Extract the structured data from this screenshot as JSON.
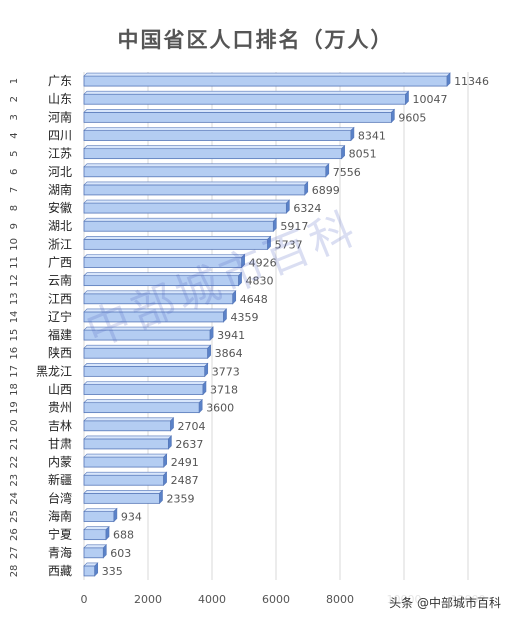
{
  "watermark": "中部城市百科",
  "source_badge": "头条 @中部城市百科",
  "colors": {
    "bar_fill": "#b4cdf2",
    "bar_top": "#d8e6fb",
    "bar_side": "#5a82c8",
    "bar_stroke": "#5677b8",
    "grid": "#d9d9d9"
  },
  "chart_data": {
    "type": "bar",
    "orientation": "horizontal",
    "title": "中国省区人口排名（万人）",
    "ranks": [
      "1",
      "2",
      "3",
      "4",
      "5",
      "6",
      "7",
      "8",
      "9",
      "10",
      "11",
      "12",
      "13",
      "14",
      "15",
      "16",
      "17",
      "18",
      "19",
      "20",
      "21",
      "22",
      "23",
      "24",
      "25",
      "26",
      "27",
      "28"
    ],
    "categories": [
      "广东",
      "山东",
      "河南",
      "四川",
      "江苏",
      "河北",
      "湖南",
      "安徽",
      "湖北",
      "浙江",
      "广西",
      "云南",
      "江西",
      "辽宁",
      "福建",
      "陕西",
      "黑龙江",
      "山西",
      "贵州",
      "吉林",
      "甘肃",
      "内蒙",
      "新疆",
      "台湾",
      "海南",
      "宁夏",
      "青海",
      "西藏"
    ],
    "values": [
      11346,
      10047,
      9605,
      8341,
      8051,
      7556,
      6899,
      6324,
      5917,
      5737,
      4926,
      4830,
      4648,
      4359,
      3941,
      3864,
      3773,
      3718,
      3600,
      2704,
      2637,
      2491,
      2487,
      2359,
      934,
      688,
      603,
      335
    ],
    "xticks": [
      0,
      2000,
      4000,
      6000,
      8000,
      10000,
      12000
    ],
    "xlim": [
      0,
      12000
    ],
    "grid": true,
    "legend": "none"
  }
}
